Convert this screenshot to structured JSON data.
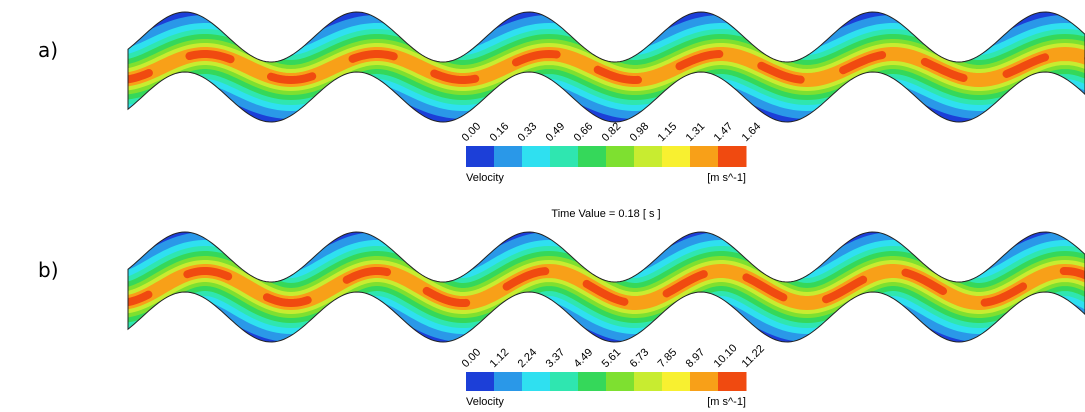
{
  "panels": [
    {
      "label": "a)",
      "legend": {
        "ticks": [
          "0.00",
          "0.16",
          "0.33",
          "0.49",
          "0.66",
          "0.82",
          "0.98",
          "1.15",
          "1.31",
          "1.47",
          "1.64"
        ],
        "title": "Velocity",
        "units": "[m s^-1]"
      }
    },
    {
      "label": "b)",
      "legend": {
        "ticks": [
          "0.00",
          "1.12",
          "2.24",
          "3.37",
          "4.49",
          "5.61",
          "6.73",
          "7.85",
          "8.97",
          "10.10",
          "11.22"
        ],
        "title": "Velocity",
        "units": "[m s^-1]"
      }
    }
  ],
  "time_value": "Time Value = 0.18 [ s ]",
  "colorbar_colors": [
    "#1c3fd8",
    "#2a98e8",
    "#2fe0f0",
    "#2fe6b0",
    "#35d85a",
    "#7ee030",
    "#c8ec30",
    "#f8f030",
    "#f8a018",
    "#f04a10"
  ]
}
